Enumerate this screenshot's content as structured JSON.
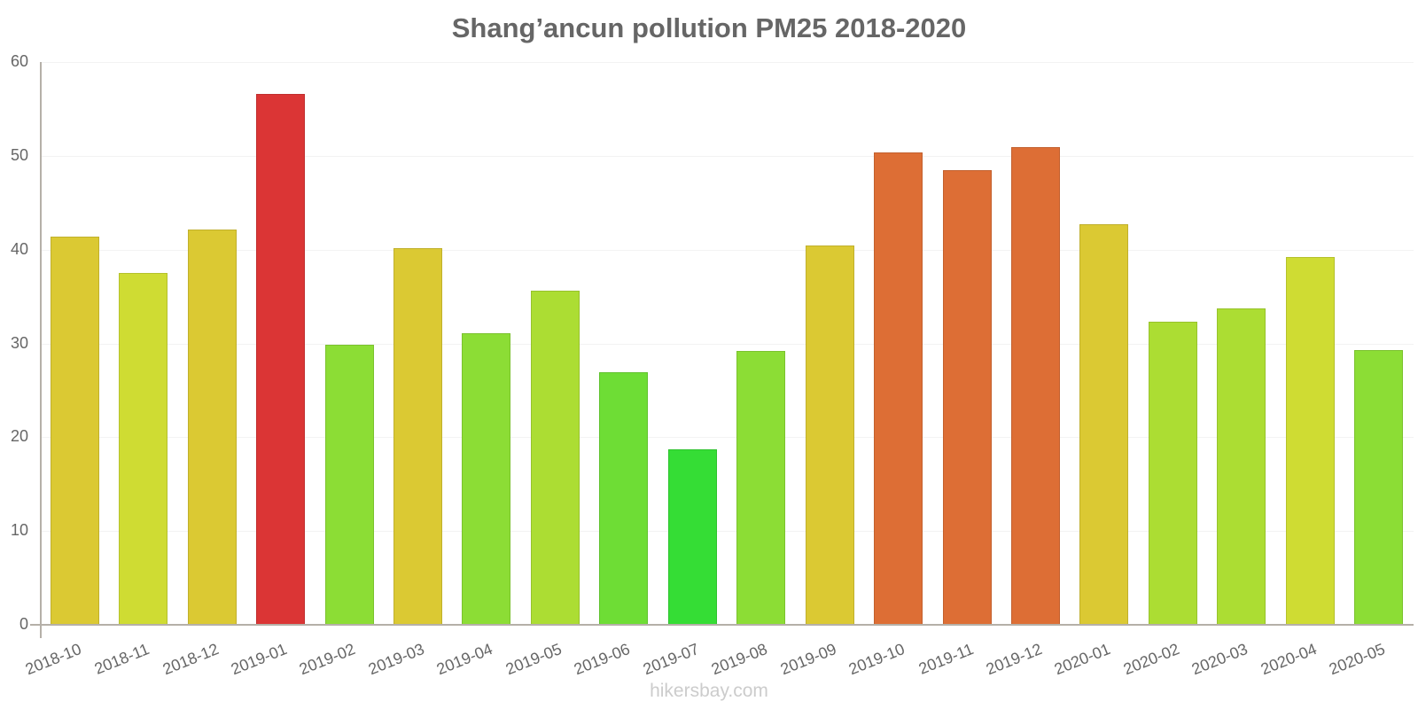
{
  "title": "Shang’ancun pollution PM25 2018-2020",
  "watermark": "hikersbay.com",
  "y_ticks": [
    "0",
    "10",
    "20",
    "30",
    "40",
    "50",
    "60"
  ],
  "chart_data": {
    "type": "bar",
    "title": "Shang’ancun pollution PM25 2018-2020",
    "xlabel": "",
    "ylabel": "",
    "ylim": [
      0,
      60
    ],
    "y_ticks": [
      0,
      10,
      20,
      30,
      40,
      50,
      60
    ],
    "grid": true,
    "legend": null,
    "categories": [
      "2018-10",
      "2018-11",
      "2018-12",
      "2019-01",
      "2019-02",
      "2019-03",
      "2019-04",
      "2019-05",
      "2019-06",
      "2019-07",
      "2019-08",
      "2019-09",
      "2019-10",
      "2019-11",
      "2019-12",
      "2020-01",
      "2020-02",
      "2020-03",
      "2020-04",
      "2020-05"
    ],
    "values": [
      41.4,
      37.5,
      42.1,
      56.6,
      29.9,
      40.2,
      31.1,
      35.6,
      26.9,
      18.7,
      29.2,
      40.4,
      50.4,
      48.5,
      50.9,
      42.7,
      32.3,
      33.7,
      39.2,
      29.3
    ],
    "colors": [
      "#dbc933",
      "#cfdc33",
      "#dbc933",
      "#db3535",
      "#8cdd35",
      "#dbc933",
      "#8cdd35",
      "#acdd33",
      "#6edd35",
      "#35dd35",
      "#8cdd35",
      "#dbc933",
      "#dd6e35",
      "#dd6e35",
      "#dd6e35",
      "#dbc933",
      "#acdd33",
      "#acdd33",
      "#cfdc33",
      "#8cdd35"
    ]
  }
}
